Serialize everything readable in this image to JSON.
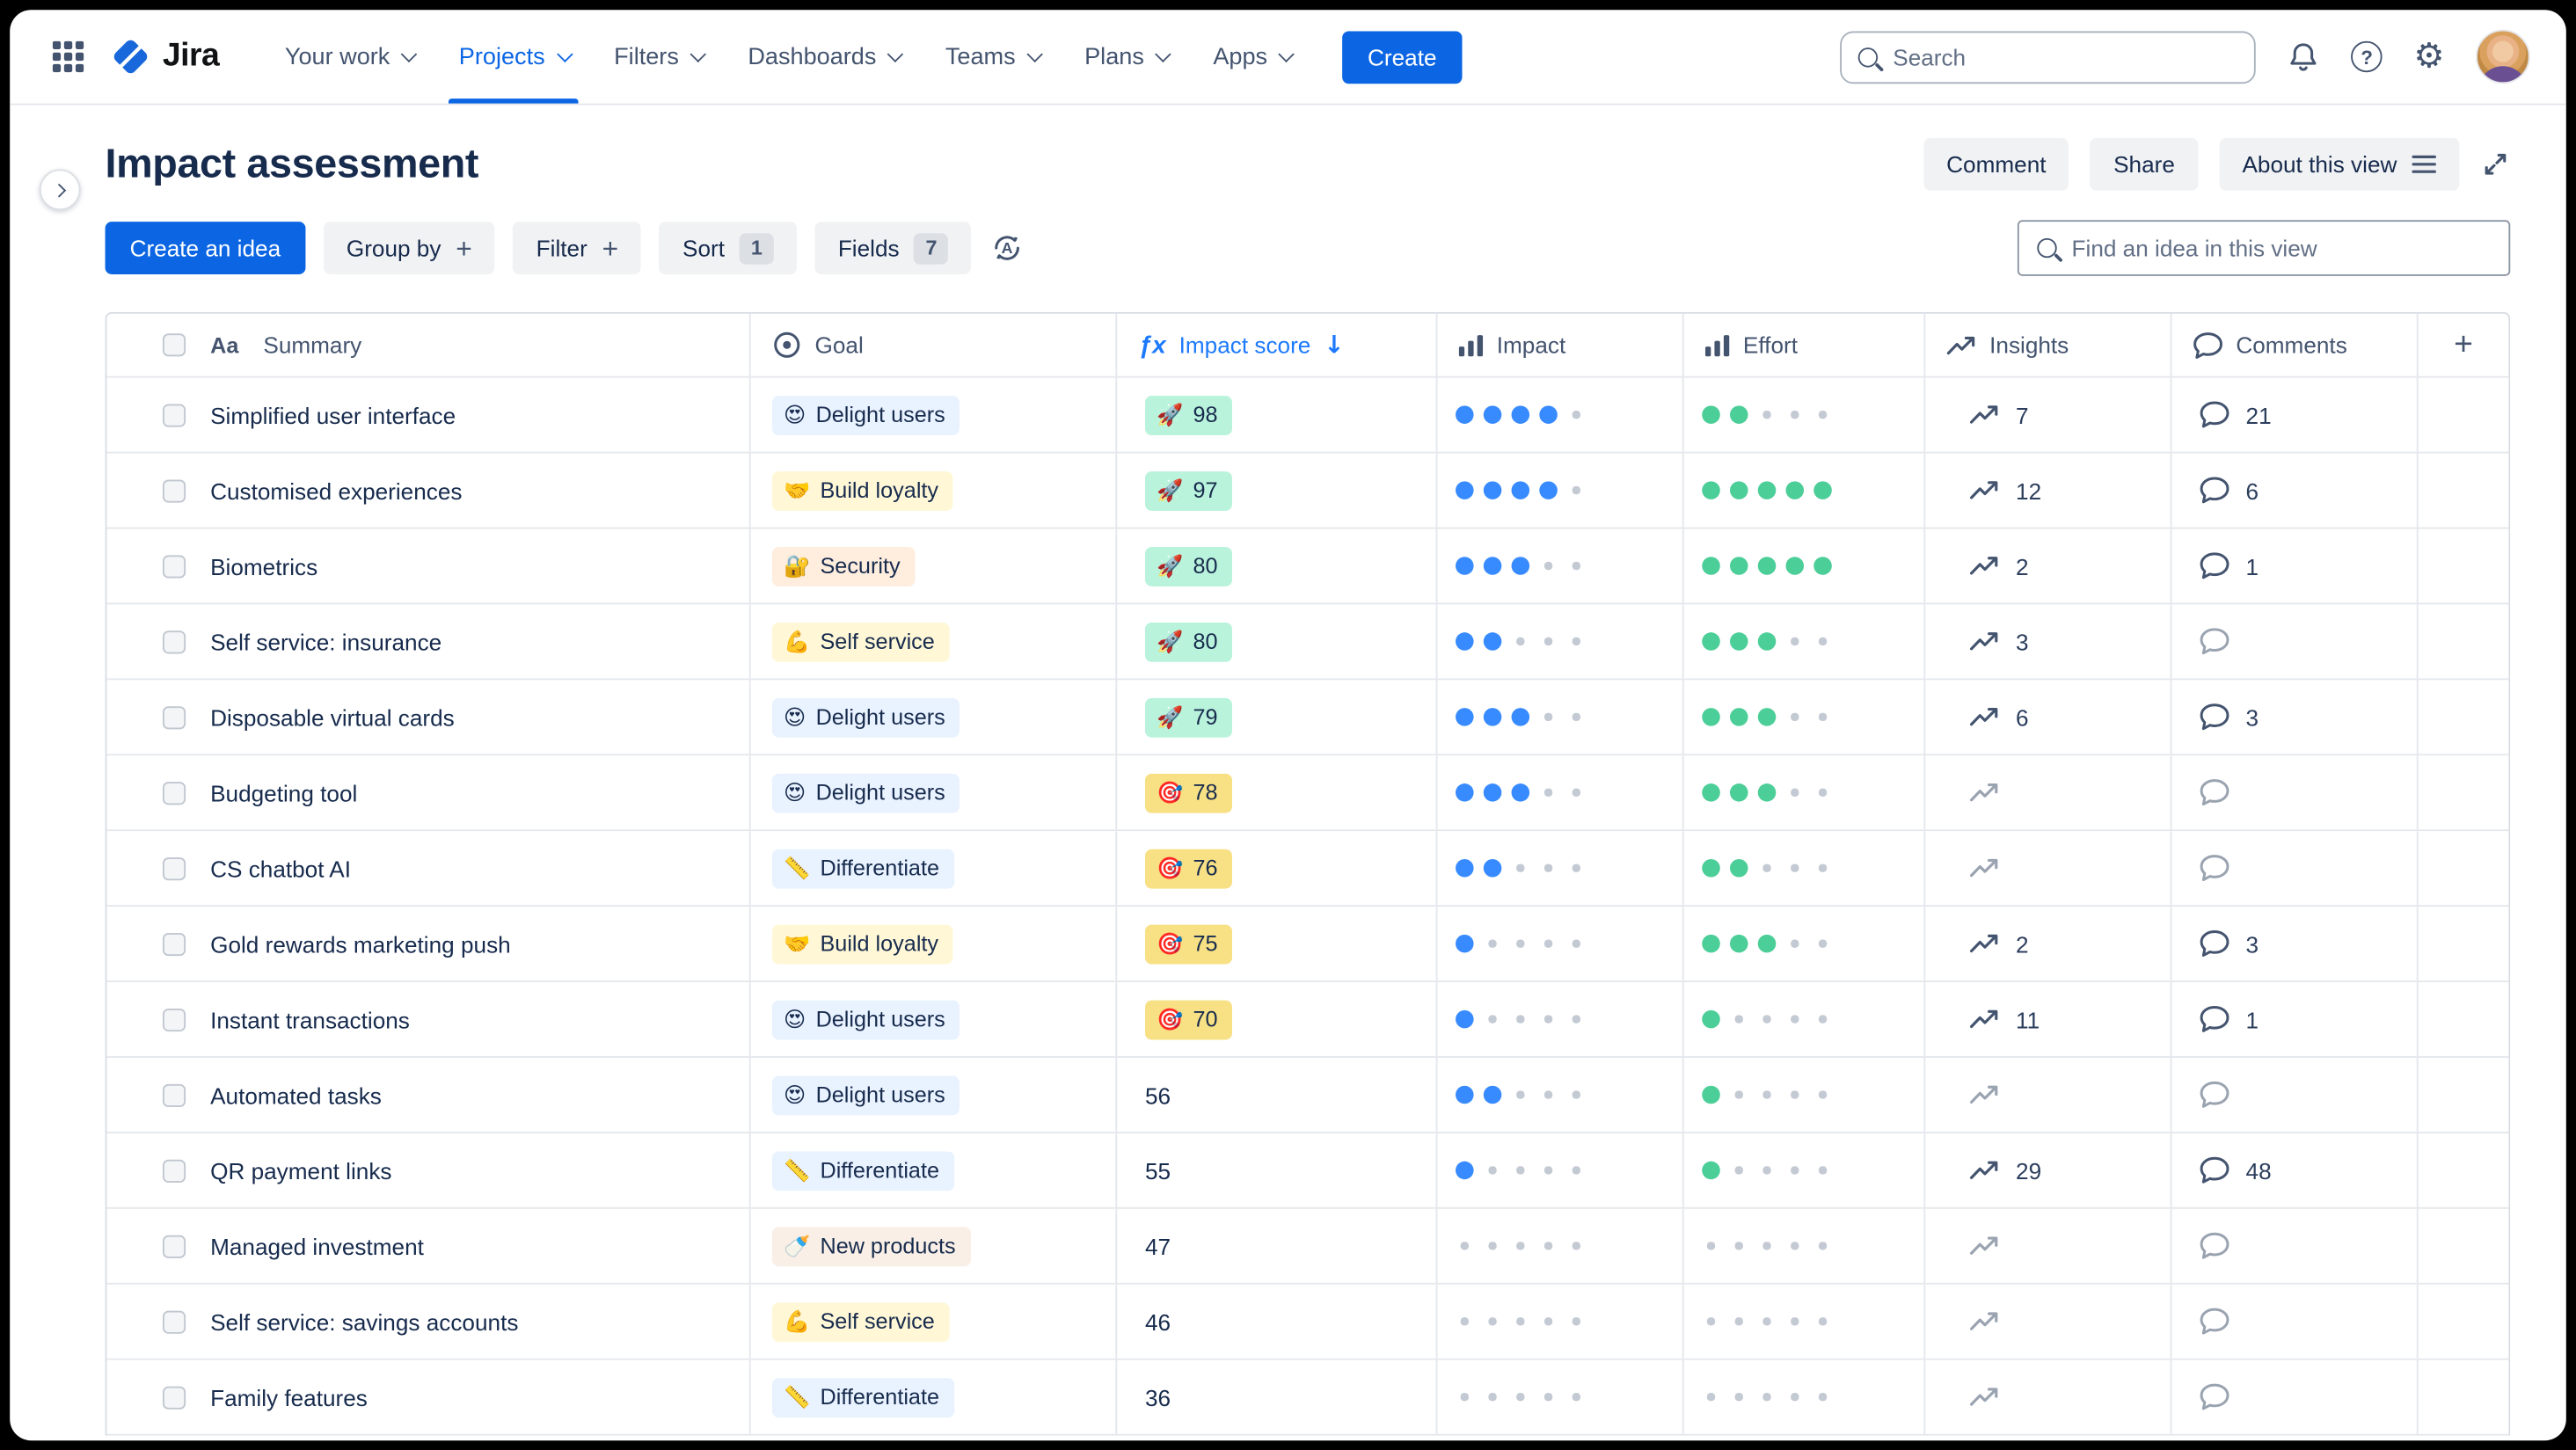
{
  "nav": {
    "logo_text": "Jira",
    "items": [
      {
        "label": "Your work"
      },
      {
        "label": "Projects",
        "active": true
      },
      {
        "label": "Filters"
      },
      {
        "label": "Dashboards"
      },
      {
        "label": "Teams"
      },
      {
        "label": "Plans"
      },
      {
        "label": "Apps"
      }
    ],
    "create_label": "Create",
    "search_placeholder": "Search"
  },
  "header": {
    "title": "Impact assessment",
    "buttons": {
      "comment": "Comment",
      "share": "Share",
      "about": "About this view"
    }
  },
  "toolbar": {
    "create_idea": "Create an idea",
    "group_by": "Group by",
    "filter": "Filter",
    "sort": "Sort",
    "sort_count": "1",
    "fields": "Fields",
    "fields_count": "7",
    "find_placeholder": "Find an idea in this view"
  },
  "table": {
    "columns": [
      {
        "label": "Summary"
      },
      {
        "label": "Goal"
      },
      {
        "label": "Impact score",
        "sorted": "desc"
      },
      {
        "label": "Impact"
      },
      {
        "label": "Effort"
      },
      {
        "label": "Insights"
      },
      {
        "label": "Comments"
      }
    ],
    "goal_styles": {
      "Delight users": {
        "emoji": "😍",
        "bg": "#E9F2FF"
      },
      "Build loyalty": {
        "emoji": "🤝",
        "bg": "#FFF7D6"
      },
      "Security": {
        "emoji": "🔐",
        "bg": "#FFEDDE"
      },
      "Self service": {
        "emoji": "💪",
        "bg": "#FFF7D6"
      },
      "Differentiate": {
        "emoji": "📏",
        "bg": "#E9F2FF"
      },
      "New products": {
        "emoji": "🍼",
        "bg": "#F9EFE6"
      }
    },
    "score_styles": {
      "green": {
        "emoji": "🚀",
        "bg": "#BAF3DB"
      },
      "yellow": {
        "emoji": "🎯",
        "bg": "#F8E084"
      },
      "plain": {
        "emoji": "",
        "bg": ""
      }
    },
    "rows": [
      {
        "summary": "Simplified user interface",
        "goal": "Delight users",
        "score": "98",
        "score_variant": "green",
        "impact": 4,
        "effort": 2,
        "insights": "7",
        "comments": "21"
      },
      {
        "summary": "Customised experiences",
        "goal": "Build loyalty",
        "score": "97",
        "score_variant": "green",
        "impact": 4,
        "effort": 5,
        "insights": "12",
        "comments": "6"
      },
      {
        "summary": "Biometrics",
        "goal": "Security",
        "score": "80",
        "score_variant": "green",
        "impact": 3,
        "effort": 5,
        "insights": "2",
        "comments": "1"
      },
      {
        "summary": "Self service: insurance",
        "goal": "Self service",
        "score": "80",
        "score_variant": "green",
        "impact": 2,
        "effort": 3,
        "insights": "3",
        "comments": ""
      },
      {
        "summary": "Disposable virtual cards",
        "goal": "Delight users",
        "score": "79",
        "score_variant": "green",
        "impact": 3,
        "effort": 3,
        "insights": "6",
        "comments": "3"
      },
      {
        "summary": "Budgeting tool",
        "goal": "Delight users",
        "score": "78",
        "score_variant": "yellow",
        "impact": 3,
        "effort": 3,
        "insights": "",
        "comments": ""
      },
      {
        "summary": "CS chatbot AI",
        "goal": "Differentiate",
        "score": "76",
        "score_variant": "yellow",
        "impact": 2,
        "effort": 2,
        "insights": "",
        "comments": ""
      },
      {
        "summary": "Gold rewards marketing push",
        "goal": "Build loyalty",
        "score": "75",
        "score_variant": "yellow",
        "impact": 1,
        "effort": 3,
        "insights": "2",
        "comments": "3"
      },
      {
        "summary": "Instant transactions",
        "goal": "Delight users",
        "score": "70",
        "score_variant": "yellow",
        "impact": 1,
        "effort": 1,
        "insights": "11",
        "comments": "1"
      },
      {
        "summary": "Automated tasks",
        "goal": "Delight users",
        "score": "56",
        "score_variant": "plain",
        "impact": 2,
        "effort": 1,
        "insights": "",
        "comments": ""
      },
      {
        "summary": "QR payment links",
        "goal": "Differentiate",
        "score": "55",
        "score_variant": "plain",
        "impact": 1,
        "effort": 1,
        "insights": "29",
        "comments": "48"
      },
      {
        "summary": "Managed investment",
        "goal": "New products",
        "score": "47",
        "score_variant": "plain",
        "impact": 0,
        "effort": 0,
        "insights": "",
        "comments": ""
      },
      {
        "summary": "Self service: savings accounts",
        "goal": "Self service",
        "score": "46",
        "score_variant": "plain",
        "impact": 0,
        "effort": 0,
        "insights": "",
        "comments": ""
      },
      {
        "summary": "Family features",
        "goal": "Differentiate",
        "score": "36",
        "score_variant": "plain",
        "impact": 0,
        "effort": 0,
        "insights": "",
        "comments": ""
      }
    ]
  },
  "colors": {
    "accent_blue": "#0C66E4",
    "sorted_column_blue": "#1D7AFC",
    "impact_dot": "#388BFF",
    "effort_dot": "#4BCE97",
    "empty_dot": "#C4CAD3"
  }
}
